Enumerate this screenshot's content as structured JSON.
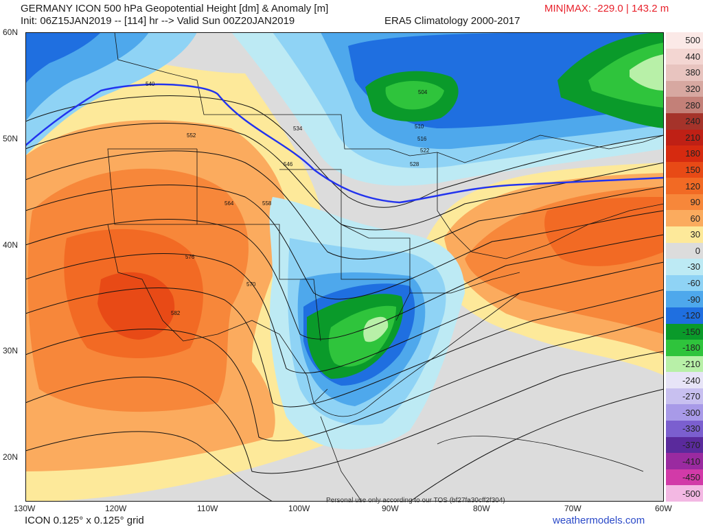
{
  "header": {
    "title": "GERMANY ICON 500 hPa Geopotential Height [dm] & Anomaly [m]",
    "init": "Init: 06Z15JAN2019 -- [114] hr --> Valid Sun 00Z20JAN2019",
    "climatology": "ERA5 Climatology 2000-2017",
    "minmax": "MIN|MAX: -229.0 | 143.2 m"
  },
  "axes": {
    "lat_labels": [
      "60N",
      "50N",
      "40N",
      "30N",
      "20N"
    ],
    "lon_labels": [
      "130W",
      "120W",
      "110W",
      "100W",
      "90W",
      "80W",
      "70W",
      "60W"
    ]
  },
  "legend": {
    "levels": [
      {
        "label": "500",
        "color": "#fbe9e7"
      },
      {
        "label": "440",
        "color": "#f3d6d2"
      },
      {
        "label": "380",
        "color": "#e8c4bf"
      },
      {
        "label": "320",
        "color": "#d7a8a1"
      },
      {
        "label": "280",
        "color": "#c38078"
      },
      {
        "label": "240",
        "color": "#a5332a"
      },
      {
        "label": "210",
        "color": "#bf2015"
      },
      {
        "label": "180",
        "color": "#d62a10"
      },
      {
        "label": "150",
        "color": "#e84a16"
      },
      {
        "label": "120",
        "color": "#f26a24"
      },
      {
        "label": "90",
        "color": "#f7873a"
      },
      {
        "label": "60",
        "color": "#fbab5e"
      },
      {
        "label": "30",
        "color": "#fde99a"
      },
      {
        "label": "0",
        "color": "#dcdcdc"
      },
      {
        "label": "-30",
        "color": "#bdeaf4"
      },
      {
        "label": "-60",
        "color": "#8fd3f5"
      },
      {
        "label": "-90",
        "color": "#4ea8ec"
      },
      {
        "label": "-120",
        "color": "#1f6fe0"
      },
      {
        "label": "-150",
        "color": "#0a9a2a"
      },
      {
        "label": "-180",
        "color": "#2fc43c"
      },
      {
        "label": "-210",
        "color": "#b8f0a8"
      },
      {
        "label": "-240",
        "color": "#e7e4f7"
      },
      {
        "label": "-270",
        "color": "#c8c0f0"
      },
      {
        "label": "-300",
        "color": "#a89ae8"
      },
      {
        "label": "-330",
        "color": "#7b5fcf"
      },
      {
        "label": "-370",
        "color": "#5a2a9c"
      },
      {
        "label": "-410",
        "color": "#9a2aa0"
      },
      {
        "label": "-450",
        "color": "#d23aa8"
      },
      {
        "label": "-500",
        "color": "#f3b8e3"
      }
    ]
  },
  "contour_labels": [
    "504",
    "510",
    "516",
    "522",
    "528",
    "534",
    "540",
    "546",
    "552",
    "558",
    "564",
    "570",
    "576",
    "582"
  ],
  "footer": {
    "model_grid": "ICON 0.125° x 0.125° grid",
    "site": "weathermodels.com",
    "usage": "Personal use only according to our TOS (bf27fa30cff2f304)"
  }
}
